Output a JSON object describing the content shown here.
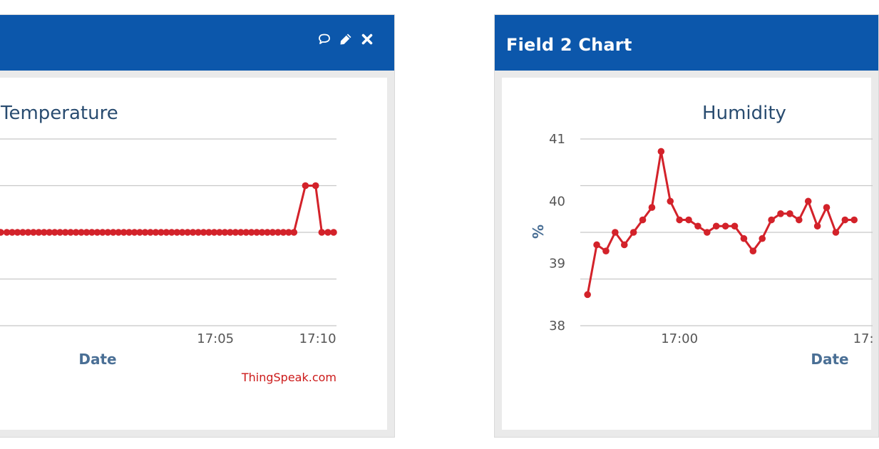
{
  "widgets": [
    {
      "header_title": "",
      "icons": [
        "comment-icon",
        "pencil-icon",
        "close-icon"
      ],
      "credit": "ThingSpeak.com"
    },
    {
      "header_title": "Field 2 Chart",
      "icons": [],
      "credit": ""
    }
  ],
  "colors": {
    "header": "#0c57ab",
    "series": "#d3222a",
    "title": "#294c70",
    "axis_label": "#4a6f95",
    "credit": "#cc1a1a"
  },
  "chart_data": [
    {
      "type": "line",
      "title": "Temperature",
      "xlabel": "Date",
      "ylabel": "",
      "x_ticks": [
        "17:05",
        "17:10"
      ],
      "x_tick_minutes": [
        5,
        10
      ],
      "xlim_minutes": [
        -5.5,
        10.85
      ],
      "ylim": [
        0,
        4
      ],
      "y_ticks": [],
      "grid": true,
      "series": [
        {
          "points": [
            [
              -5.5,
              2
            ],
            [
              -5.2,
              2
            ],
            [
              -4.94,
              2
            ],
            [
              -4.68,
              2
            ],
            [
              -4.42,
              2
            ],
            [
              -4.16,
              2
            ],
            [
              -3.9,
              2
            ],
            [
              -3.64,
              2
            ],
            [
              -3.38,
              2
            ],
            [
              -3.12,
              2
            ],
            [
              -2.86,
              2
            ],
            [
              -2.6,
              2
            ],
            [
              -2.34,
              2
            ],
            [
              -2.08,
              2
            ],
            [
              -1.82,
              2
            ],
            [
              -1.56,
              2
            ],
            [
              -1.3,
              2
            ],
            [
              -1.04,
              2
            ],
            [
              -0.78,
              2
            ],
            [
              -0.52,
              2
            ],
            [
              -0.26,
              2
            ],
            [
              0.0,
              2
            ],
            [
              0.26,
              2
            ],
            [
              0.52,
              2
            ],
            [
              0.78,
              2
            ],
            [
              1.04,
              2
            ],
            [
              1.3,
              2
            ],
            [
              1.56,
              2
            ],
            [
              1.82,
              2
            ],
            [
              2.08,
              2
            ],
            [
              2.34,
              2
            ],
            [
              2.6,
              2
            ],
            [
              2.86,
              2
            ],
            [
              3.12,
              2
            ],
            [
              3.38,
              2
            ],
            [
              3.64,
              2
            ],
            [
              3.9,
              2
            ],
            [
              4.16,
              2
            ],
            [
              4.42,
              2
            ],
            [
              4.68,
              2
            ],
            [
              4.94,
              2
            ],
            [
              5.2,
              2
            ],
            [
              5.46,
              2
            ],
            [
              5.72,
              2
            ],
            [
              5.98,
              2
            ],
            [
              6.24,
              2
            ],
            [
              6.5,
              2
            ],
            [
              6.76,
              2
            ],
            [
              7.02,
              2
            ],
            [
              7.28,
              2
            ],
            [
              7.54,
              2
            ],
            [
              7.8,
              2
            ],
            [
              8.06,
              2
            ],
            [
              8.32,
              2
            ],
            [
              8.58,
              2
            ],
            [
              8.84,
              2
            ],
            [
              9.4,
              3
            ],
            [
              9.9,
              3
            ],
            [
              10.2,
              2
            ],
            [
              10.5,
              2
            ],
            [
              10.78,
              2
            ]
          ]
        }
      ],
      "credit": "ThingSpeak.com"
    },
    {
      "type": "line",
      "title": "Humidity",
      "xlabel": "Date",
      "ylabel": "%",
      "x_ticks": [
        "17:00",
        "17:"
      ],
      "x_tick_minutes": [
        0,
        10
      ],
      "xlim_minutes": [
        -5.2,
        10.5
      ],
      "ylim": [
        38,
        41
      ],
      "y_ticks": [
        38,
        39,
        40,
        41
      ],
      "grid": true,
      "series": [
        {
          "points": [
            [
              -5.0,
              38.5
            ],
            [
              -4.5,
              39.3
            ],
            [
              -4.0,
              39.2
            ],
            [
              -3.5,
              39.5
            ],
            [
              -3.0,
              39.3
            ],
            [
              -2.5,
              39.5
            ],
            [
              -2.0,
              39.7
            ],
            [
              -1.5,
              39.9
            ],
            [
              -1.0,
              40.8
            ],
            [
              -0.5,
              40.0
            ],
            [
              0.0,
              39.7
            ],
            [
              0.5,
              39.7
            ],
            [
              1.0,
              39.6
            ],
            [
              1.5,
              39.5
            ],
            [
              2.0,
              39.6
            ],
            [
              2.5,
              39.6
            ],
            [
              3.0,
              39.6
            ],
            [
              3.5,
              39.4
            ],
            [
              4.0,
              39.2
            ],
            [
              4.5,
              39.4
            ],
            [
              5.0,
              39.7
            ],
            [
              5.5,
              39.8
            ],
            [
              6.0,
              39.8
            ],
            [
              6.5,
              39.7
            ],
            [
              7.0,
              40.0
            ],
            [
              7.5,
              39.6
            ],
            [
              8.0,
              39.9
            ],
            [
              8.5,
              39.5
            ],
            [
              9.0,
              39.7
            ],
            [
              9.5,
              39.7
            ]
          ]
        }
      ],
      "credit": ""
    }
  ]
}
